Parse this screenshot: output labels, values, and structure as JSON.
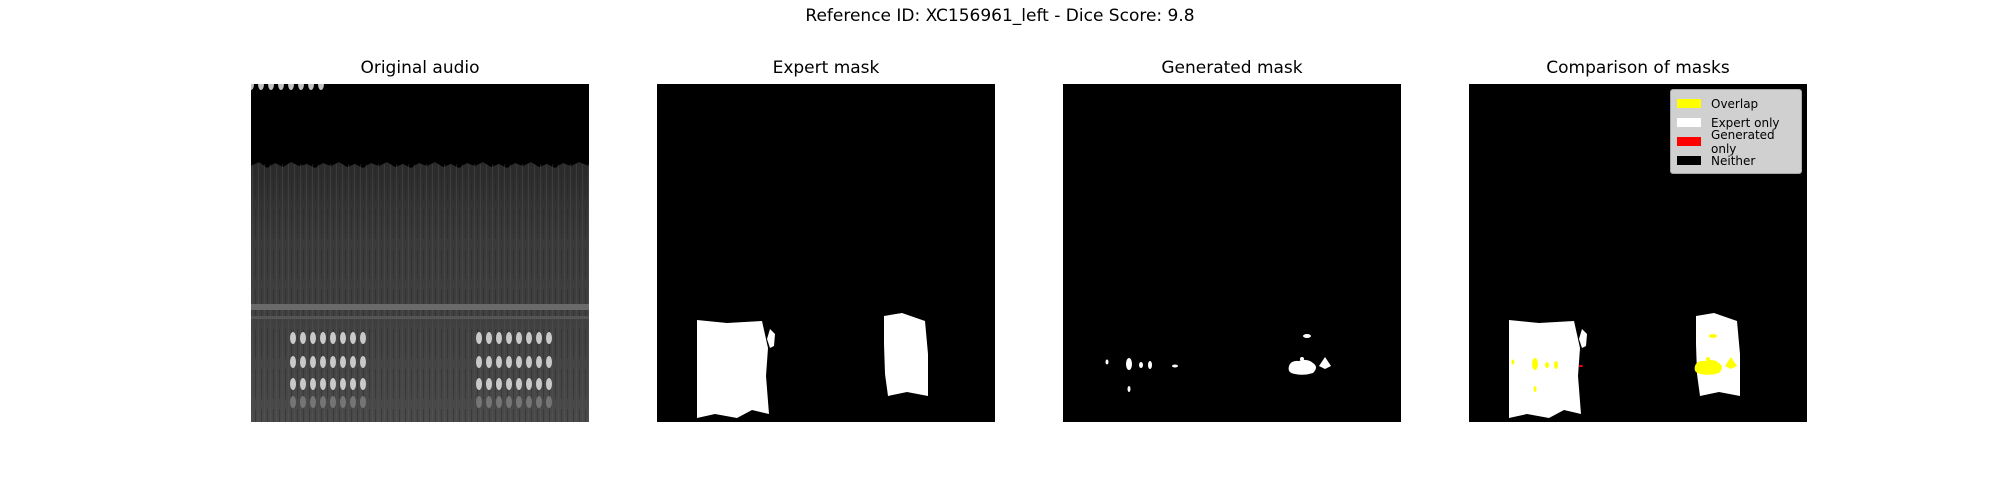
{
  "figure": {
    "suptitle": "Reference ID: XC156961_left - Dice Score: 9.8"
  },
  "panels": [
    {
      "title": "Original audio"
    },
    {
      "title": "Expert mask"
    },
    {
      "title": "Generated mask"
    },
    {
      "title": "Comparison of masks"
    }
  ],
  "legend": {
    "items": [
      {
        "label": "Overlap",
        "color": "#ffff00"
      },
      {
        "label": "Expert only",
        "color": "#ffffff"
      },
      {
        "label": "Generated only",
        "color": "#ff0000"
      },
      {
        "label": "Neither",
        "color": "#000000"
      }
    ]
  }
}
